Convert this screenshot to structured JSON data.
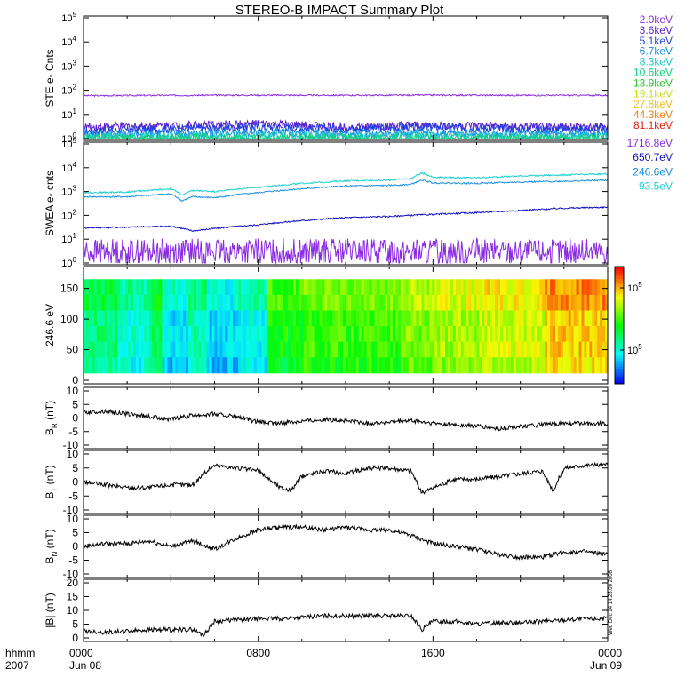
{
  "title": "STEREO-B IMPACT Summary Plot",
  "footer": {
    "left_top": "hhmm",
    "left_bottom": "2007",
    "x_labels": [
      {
        "time": "0000",
        "date": "Jun 08",
        "hours": 0
      },
      {
        "time": "0800",
        "date": "",
        "hours": 8
      },
      {
        "time": "1600",
        "date": "",
        "hours": 16
      },
      {
        "time": "0000",
        "date": "Jun 09",
        "hours": 24
      }
    ]
  },
  "side_note": "Wed Dec 14 14:25:00 2008",
  "colors": {
    "2.0keV": "#8a2be2",
    "3.6keV": "#5a1fd0",
    "5.1keV": "#1f3fe0",
    "6.7keV": "#1a90e0",
    "8.3keV": "#18c8c8",
    "10.6keV": "#10d080",
    "13.9keV": "#30c030",
    "19.1keV": "#c8e020",
    "27.8keV": "#f0c020",
    "44.3keV": "#f08010",
    "81.1keV": "#e02010",
    "1716.8eV": "#8a2be2",
    "650.7eV": "#1010c0",
    "246.6eV": "#1a90e0",
    "93.5eV": "#18d0d0"
  },
  "chart_data": [
    {
      "type": "line",
      "name": "ste",
      "ylabel": "STE e- Cnts",
      "yscale": "log",
      "ylim": [
        1,
        100000
      ],
      "yticks": [
        {
          "b": "10",
          "e": "0",
          "v": 1
        },
        {
          "b": "10",
          "e": "1",
          "v": 10
        },
        {
          "b": "10",
          "e": "2",
          "v": 100
        },
        {
          "b": "10",
          "e": "3",
          "v": 1000
        },
        {
          "b": "10",
          "e": "4",
          "v": 10000
        },
        {
          "b": "10",
          "e": "5",
          "v": 100000
        }
      ],
      "xlim": [
        0,
        24
      ],
      "legend": [
        "2.0keV",
        "3.6keV",
        "5.1keV",
        "6.7keV",
        "8.3keV",
        "10.6keV",
        "13.9keV",
        "19.1keV",
        "27.8keV",
        "44.3keV",
        "81.1keV"
      ],
      "series": [
        {
          "label": "2.0keV",
          "x": [
            0,
            4,
            8,
            12,
            16,
            20,
            24
          ],
          "y": [
            60,
            62,
            63,
            62,
            63,
            62,
            62
          ]
        },
        {
          "label": "3.6keV",
          "x": [
            0,
            4,
            8,
            12,
            16,
            20,
            24
          ],
          "y": [
            3,
            3.5,
            4,
            3,
            3.5,
            3,
            3
          ]
        },
        {
          "label": "5.1keV",
          "x": [
            0,
            4,
            8,
            12,
            16,
            20,
            24
          ],
          "y": [
            2,
            2.5,
            3,
            2.5,
            3,
            2.5,
            2.5
          ]
        },
        {
          "label": "6.7keV",
          "x": [
            0,
            4,
            8,
            12,
            16,
            20,
            24
          ],
          "y": [
            1.5,
            1.6,
            1.8,
            1.6,
            1.7,
            1.6,
            1.6
          ]
        },
        {
          "label": "8.3keV",
          "x": [
            0,
            4,
            8,
            12,
            16,
            20,
            24
          ],
          "y": [
            1.2,
            1.2,
            1.3,
            1.2,
            1.3,
            1.2,
            1.2
          ]
        },
        {
          "label": "10.6keV",
          "x": [
            0,
            24
          ],
          "y": [
            1.05,
            1.05
          ]
        }
      ]
    },
    {
      "type": "line",
      "name": "swea",
      "ylabel": "SWEA e- cnts",
      "yscale": "log",
      "ylim": [
        1,
        100000
      ],
      "yticks": [
        {
          "b": "10",
          "e": "0",
          "v": 1
        },
        {
          "b": "10",
          "e": "1",
          "v": 10
        },
        {
          "b": "10",
          "e": "2",
          "v": 100
        },
        {
          "b": "10",
          "e": "3",
          "v": 1000
        },
        {
          "b": "10",
          "e": "4",
          "v": 10000
        },
        {
          "b": "10",
          "e": "5",
          "v": 100000
        }
      ],
      "xlim": [
        0,
        24
      ],
      "legend": [
        "1716.8eV",
        "650.7eV",
        "246.6eV",
        "93.5eV"
      ],
      "series": [
        {
          "label": "93.5eV",
          "x": [
            0,
            2,
            4,
            4.5,
            5,
            6,
            8,
            10,
            12,
            14,
            15,
            15.5,
            16,
            18,
            20,
            22,
            24
          ],
          "y": [
            900,
            950,
            1300,
            700,
            1100,
            1000,
            1500,
            2200,
            2800,
            3000,
            3500,
            6000,
            4000,
            3800,
            4500,
            5000,
            5500
          ]
        },
        {
          "label": "246.6eV",
          "x": [
            0,
            2,
            4,
            4.5,
            5,
            6,
            8,
            10,
            12,
            14,
            15,
            15.5,
            16,
            18,
            20,
            22,
            24
          ],
          "y": [
            600,
            600,
            800,
            400,
            600,
            550,
            900,
            1300,
            1700,
            1800,
            2000,
            3000,
            2300,
            2200,
            2500,
            2700,
            3000
          ]
        },
        {
          "label": "650.7eV",
          "x": [
            0,
            2,
            4,
            5,
            6,
            8,
            10,
            12,
            14,
            15,
            16,
            18,
            20,
            22,
            24
          ],
          "y": [
            30,
            32,
            35,
            22,
            28,
            40,
            60,
            80,
            90,
            100,
            110,
            130,
            160,
            200,
            220
          ]
        },
        {
          "label": "1716.8eV",
          "x": [
            0,
            24
          ],
          "y": [
            3,
            3
          ]
        }
      ]
    },
    {
      "type": "heatmap",
      "name": "pad",
      "ylabel": "246.6 eV",
      "ylim": [
        0,
        180
      ],
      "yticks": [
        0,
        50,
        100,
        150
      ],
      "xlim": [
        0,
        24
      ],
      "colorbar": {
        "ticks": [
          {
            "b": "10",
            "e": "5",
            "v": 100000
          },
          {
            "b": "10",
            "e": "5",
            "v": 200000
          }
        ]
      },
      "segments": [
        {
          "x0": 0,
          "x1": 1.5,
          "level": 0.38
        },
        {
          "x0": 1.5,
          "x1": 3,
          "level": 0.3
        },
        {
          "x0": 3,
          "x1": 3.6,
          "level": 0.4
        },
        {
          "x0": 3.6,
          "x1": 4.8,
          "level": 0.24
        },
        {
          "x0": 4.8,
          "x1": 5.6,
          "level": 0.32
        },
        {
          "x0": 5.6,
          "x1": 7,
          "level": 0.22
        },
        {
          "x0": 7,
          "x1": 8.4,
          "level": 0.28
        },
        {
          "x0": 8.4,
          "x1": 10,
          "level": 0.5
        },
        {
          "x0": 10,
          "x1": 14.5,
          "level": 0.55
        },
        {
          "x0": 14.5,
          "x1": 16,
          "level": 0.62
        },
        {
          "x0": 16,
          "x1": 18,
          "level": 0.66
        },
        {
          "x0": 18,
          "x1": 21,
          "level": 0.7
        },
        {
          "x0": 21,
          "x1": 24,
          "level": 0.8
        }
      ]
    },
    {
      "type": "line",
      "name": "br",
      "ylabel": {
        "main": "B",
        "sub": "R",
        "unit": " (nT)"
      },
      "ylim": [
        -10,
        10
      ],
      "yticks": [
        -10,
        -5,
        0,
        5,
        10
      ],
      "xlim": [
        0,
        24
      ],
      "series": [
        {
          "x": [
            0,
            1,
            2,
            3,
            4,
            5,
            6,
            7,
            8,
            9,
            10,
            11,
            12,
            13,
            14,
            15,
            16,
            17,
            18,
            19,
            20,
            21,
            22,
            23,
            24
          ],
          "y": [
            2,
            2.5,
            1.5,
            0.5,
            -0.5,
            1,
            1.5,
            0.5,
            -1.5,
            -2,
            -1,
            -0.5,
            -1,
            -2,
            -1.5,
            -1,
            -2,
            -2.5,
            -3,
            -4,
            -3,
            -2.5,
            -2,
            -2,
            -2
          ]
        }
      ]
    },
    {
      "type": "line",
      "name": "bt",
      "ylabel": {
        "main": "B",
        "sub": "T",
        "unit": " (nT)"
      },
      "ylim": [
        -10,
        10
      ],
      "yticks": [
        -10,
        -5,
        0,
        5,
        10
      ],
      "xlim": [
        0,
        24
      ],
      "series": [
        {
          "x": [
            0,
            1,
            2,
            3,
            4,
            5,
            5.5,
            6,
            7,
            8,
            9,
            9.5,
            10,
            11,
            12,
            13,
            14,
            15,
            15.5,
            16,
            17,
            18,
            19,
            20,
            21,
            21.5,
            22,
            23,
            24
          ],
          "y": [
            0,
            -1,
            -2,
            -2,
            -1,
            -1,
            3,
            6,
            5,
            4,
            -2,
            -3,
            2,
            4,
            3,
            5,
            5,
            4,
            -4,
            -2,
            1,
            1,
            2,
            3,
            4,
            -3,
            5,
            6,
            6
          ]
        }
      ]
    },
    {
      "type": "line",
      "name": "bn",
      "ylabel": {
        "main": "B",
        "sub": "N",
        "unit": " (nT)"
      },
      "ylim": [
        -10,
        10
      ],
      "yticks": [
        -10,
        -5,
        0,
        5,
        10
      ],
      "xlim": [
        0,
        24
      ],
      "series": [
        {
          "x": [
            0,
            1,
            2,
            3,
            4,
            5,
            6,
            7,
            8,
            9,
            10,
            11,
            12,
            13,
            14,
            15,
            16,
            17,
            18,
            19,
            20,
            21,
            22,
            23,
            24
          ],
          "y": [
            0,
            1,
            1,
            2,
            0,
            2,
            -1,
            3,
            6,
            7,
            7,
            6,
            7,
            6,
            6,
            4,
            1,
            0,
            -1,
            -3,
            -4,
            -4,
            -2,
            -2,
            -3
          ]
        }
      ]
    },
    {
      "type": "line",
      "name": "bmag",
      "ylabel": {
        "main": "|B|",
        "sub": "",
        "unit": " (nT)"
      },
      "ylim": [
        0,
        20
      ],
      "yticks": [
        0,
        5,
        10,
        15,
        20
      ],
      "xlim": [
        0,
        24
      ],
      "series": [
        {
          "x": [
            0,
            1,
            2,
            3,
            4,
            5,
            5.5,
            6,
            7,
            8,
            9,
            10,
            11,
            12,
            13,
            14,
            15,
            15.5,
            16,
            17,
            18,
            19,
            20,
            21,
            22,
            23,
            24
          ],
          "y": [
            2.5,
            2,
            2.5,
            3,
            3,
            3,
            1,
            6,
            6.5,
            7,
            7,
            7.5,
            8,
            8,
            8,
            8,
            8,
            3,
            6,
            6,
            5,
            5.5,
            5.5,
            6,
            6.5,
            7,
            7
          ]
        }
      ]
    }
  ]
}
